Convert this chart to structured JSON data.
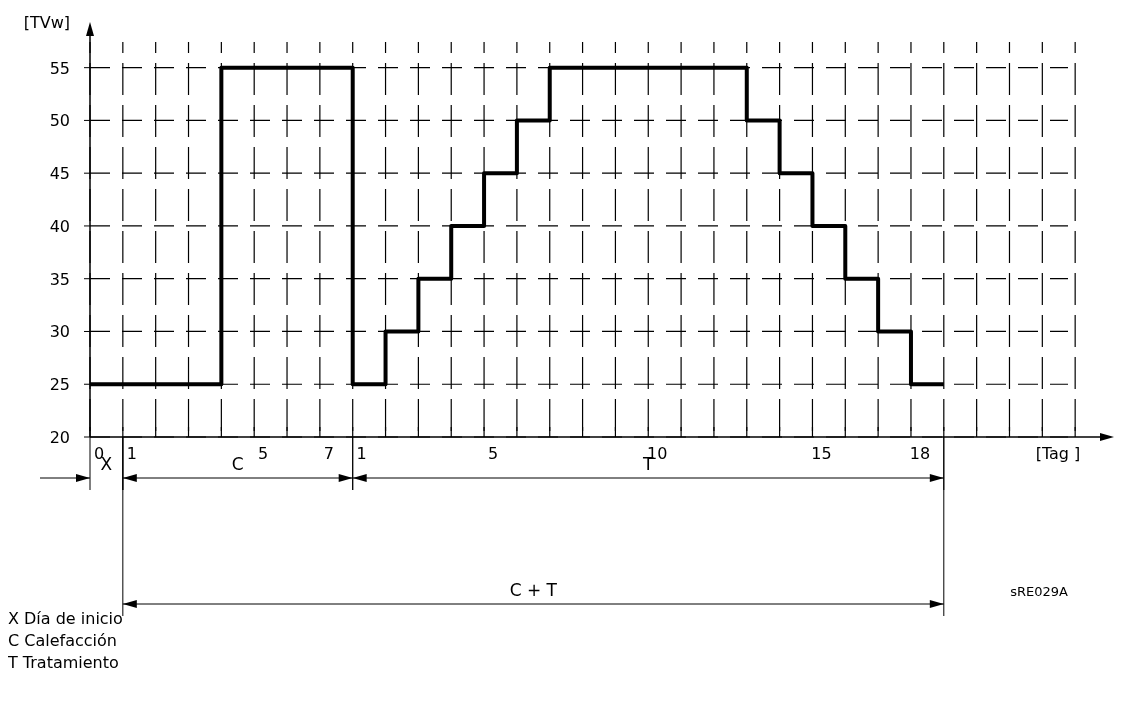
{
  "chart_data": {
    "type": "step",
    "xlabel": "[Tag ]",
    "ylabel": "[TVw]",
    "categories": [
      "0",
      "1",
      null,
      null,
      null,
      "5",
      null,
      "7",
      "1",
      null,
      null,
      null,
      "5",
      null,
      null,
      null,
      null,
      "10",
      null,
      null,
      null,
      null,
      "15",
      null,
      null,
      "18",
      null,
      null,
      null,
      null,
      null
    ],
    "series": [
      {
        "color": "#000000",
        "values": [
          25,
          25,
          25,
          25,
          55,
          55,
          55,
          55,
          25,
          30,
          35,
          40,
          45,
          50,
          55,
          55,
          55,
          55,
          55,
          55,
          50,
          45,
          40,
          35,
          30,
          25,
          25,
          null,
          null,
          null,
          null
        ]
      }
    ],
    "ylim": [
      20,
      58
    ],
    "yticks": [
      20,
      25,
      30,
      35,
      40,
      45,
      50,
      55
    ],
    "grid": true,
    "annotations": [
      "X",
      "C",
      "T",
      "C + T",
      "sRE029A",
      "X Día de inicio",
      "C Calefacción",
      "T Tratamiento"
    ]
  }
}
